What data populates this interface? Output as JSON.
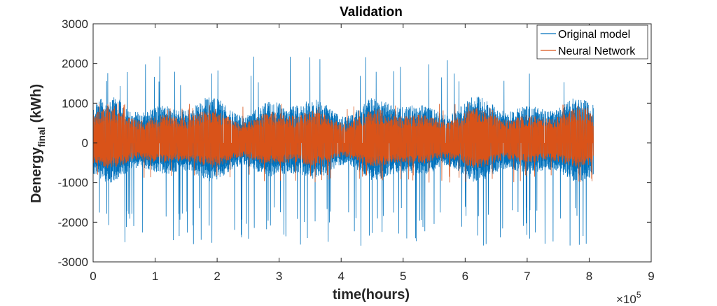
{
  "chart_data": {
    "type": "line",
    "title": "Validation",
    "xlabel": "time(hours)",
    "ylabel_main": "Denergy",
    "ylabel_sub": "final",
    "ylabel_unit": "(kWh)",
    "xlim": [
      0,
      900000
    ],
    "ylim": [
      -3000,
      3000
    ],
    "x_ticks": [
      0,
      100000,
      200000,
      300000,
      400000,
      500000,
      600000,
      700000,
      800000,
      900000
    ],
    "x_tick_labels": [
      "0",
      "1",
      "2",
      "3",
      "4",
      "5",
      "6",
      "7",
      "8",
      "9"
    ],
    "x_exponent_prefix": "×10",
    "x_exponent_power": "5",
    "y_ticks": [
      -3000,
      -2000,
      -1000,
      0,
      1000,
      2000,
      3000
    ],
    "y_tick_labels": [
      "-3000",
      "-2000",
      "-1000",
      "0",
      "1000",
      "2000",
      "3000"
    ],
    "grid": false,
    "legend_position": "top-right",
    "data_x_range": [
      0,
      807000
    ],
    "series": [
      {
        "name": "Original model",
        "color": "#0072BD",
        "typical_range": [
          -1000,
          1200
        ],
        "spike_max": 2200,
        "spike_min": -2600
      },
      {
        "name": "Neural Network",
        "color": "#D95319",
        "typical_range": [
          -650,
          900
        ],
        "spike_max": 1000,
        "spike_min": -1000
      }
    ]
  }
}
